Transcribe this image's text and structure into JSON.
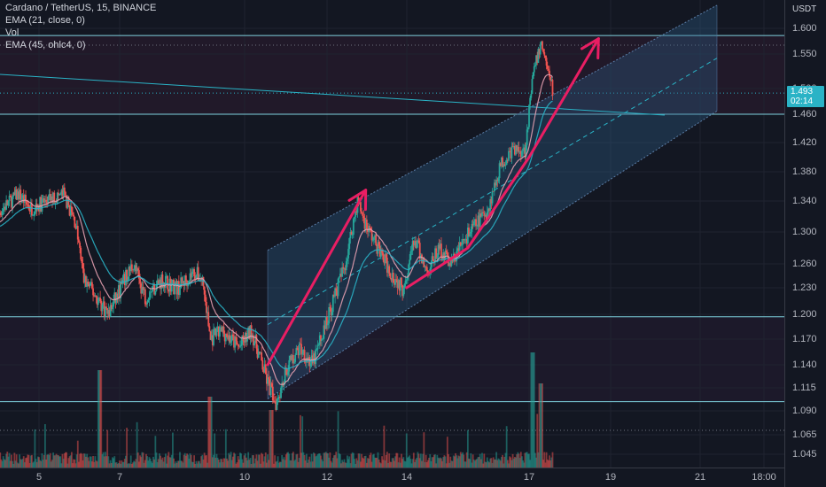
{
  "legend": {
    "symbol": "Cardano / TetherUS, 15, BINANCE",
    "ema21": "EMA (21, close, 0)",
    "vol": "Vol",
    "ema45": "EMA (45, ohlc4, 0)"
  },
  "price_axis": {
    "currency": "USDT",
    "ticks": [
      "1.600",
      "1.550",
      "1.500",
      "1.460",
      "1.420",
      "1.380",
      "1.340",
      "1.300",
      "1.260",
      "1.230",
      "1.200",
      "1.170",
      "1.140",
      "1.115",
      "1.090",
      "1.065",
      "1.045"
    ],
    "current_price": "1.493",
    "countdown": "02:14"
  },
  "time_axis": {
    "ticks": [
      "5",
      "7",
      "10",
      "12",
      "14",
      "17",
      "19",
      "21",
      "18:00"
    ]
  },
  "colors": {
    "background": "#131722",
    "up": "#26a69a",
    "down": "#ef5350",
    "ema21": "#e5a0b0",
    "ema45": "#2ab3c6",
    "level_line": "#7fd3df",
    "channel_fill": "#2e5f8a",
    "arrow": "#e91e63",
    "price_label": "#2ab3c6"
  },
  "chart_data": {
    "type": "candlestick",
    "x": [
      "5",
      "7",
      "10",
      "12",
      "14",
      "17",
      "19",
      "21",
      "18:00"
    ],
    "ylim": [
      1.03,
      1.64
    ],
    "horizontal_levels": [
      1.586,
      1.46,
      1.197,
      1.1
    ],
    "current_price": 1.493,
    "channel": {
      "start_day": 10.6,
      "end_day": 21.6,
      "lower_start": 1.103,
      "lower_end": 1.465,
      "upper_start": 1.277,
      "upper_end": 1.645
    },
    "price_path": [
      [
        3.8,
        1.31
      ],
      [
        4.1,
        1.33
      ],
      [
        4.5,
        1.35
      ],
      [
        4.8,
        1.33
      ],
      [
        5.2,
        1.34
      ],
      [
        5.6,
        1.35
      ],
      [
        5.9,
        1.31
      ],
      [
        6.1,
        1.24
      ],
      [
        6.4,
        1.22
      ],
      [
        6.7,
        1.2
      ],
      [
        7.0,
        1.23
      ],
      [
        7.3,
        1.26
      ],
      [
        7.6,
        1.22
      ],
      [
        8.0,
        1.24
      ],
      [
        8.4,
        1.23
      ],
      [
        8.8,
        1.25
      ],
      [
        9.0,
        1.24
      ],
      [
        9.2,
        1.17
      ],
      [
        9.5,
        1.18
      ],
      [
        9.9,
        1.16
      ],
      [
        10.2,
        1.18
      ],
      [
        10.6,
        1.12
      ],
      [
        10.8,
        1.1
      ],
      [
        11.1,
        1.14
      ],
      [
        11.4,
        1.16
      ],
      [
        11.7,
        1.14
      ],
      [
        12.1,
        1.2
      ],
      [
        12.5,
        1.26
      ],
      [
        12.8,
        1.34
      ],
      [
        13.0,
        1.31
      ],
      [
        13.3,
        1.28
      ],
      [
        13.6,
        1.25
      ],
      [
        13.9,
        1.23
      ],
      [
        14.2,
        1.29
      ],
      [
        14.5,
        1.25
      ],
      [
        14.8,
        1.28
      ],
      [
        15.1,
        1.26
      ],
      [
        15.4,
        1.29
      ],
      [
        15.7,
        1.31
      ],
      [
        16.0,
        1.33
      ],
      [
        16.3,
        1.39
      ],
      [
        16.6,
        1.41
      ],
      [
        16.9,
        1.41
      ],
      [
        17.1,
        1.52
      ],
      [
        17.3,
        1.57
      ],
      [
        17.45,
        1.53
      ],
      [
        17.6,
        1.49
      ]
    ],
    "arrows": [
      {
        "from": [
          10.6,
          1.14
        ],
        "to": [
          13.0,
          1.355
        ]
      },
      {
        "from": [
          14.0,
          1.23
        ],
        "to": [
          15.5,
          1.28
        ]
      },
      {
        "from": [
          15.5,
          1.28
        ],
        "to": [
          17.0,
          1.4
        ]
      },
      {
        "from": [
          17.0,
          1.4
        ],
        "to": [
          18.7,
          1.58
        ]
      }
    ],
    "series": [
      {
        "type": "candles"
      },
      {
        "type": "ema",
        "period": 21
      },
      {
        "type": "ema",
        "period": 45
      },
      {
        "type": "volume"
      }
    ]
  }
}
